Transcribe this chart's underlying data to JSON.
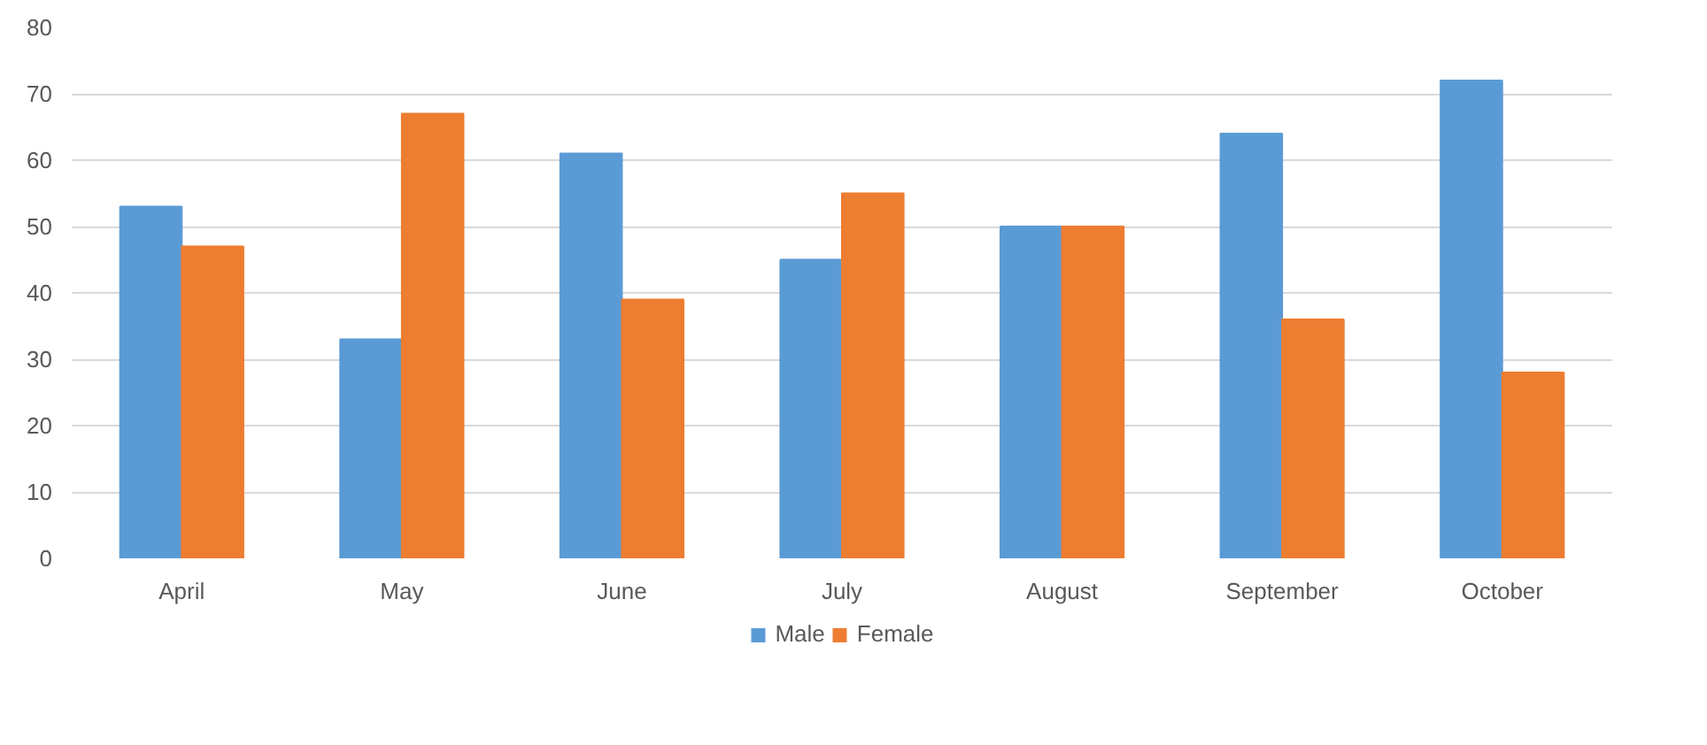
{
  "chart_data": {
    "type": "bar",
    "categories": [
      "April",
      "May",
      "June",
      "July",
      "August",
      "September",
      "October"
    ],
    "series": [
      {
        "name": "Male",
        "color": "#5b9bd5",
        "values": [
          53,
          33,
          61,
          45,
          50,
          64,
          72
        ]
      },
      {
        "name": "Female",
        "color": "#ed7d31",
        "values": [
          47,
          67,
          39,
          55,
          50,
          36,
          28
        ]
      }
    ],
    "ylim": [
      0,
      80
    ],
    "yticks": [
      0,
      10,
      20,
      30,
      40,
      50,
      60,
      70,
      80
    ],
    "grid": "y",
    "legend": "bottom"
  }
}
